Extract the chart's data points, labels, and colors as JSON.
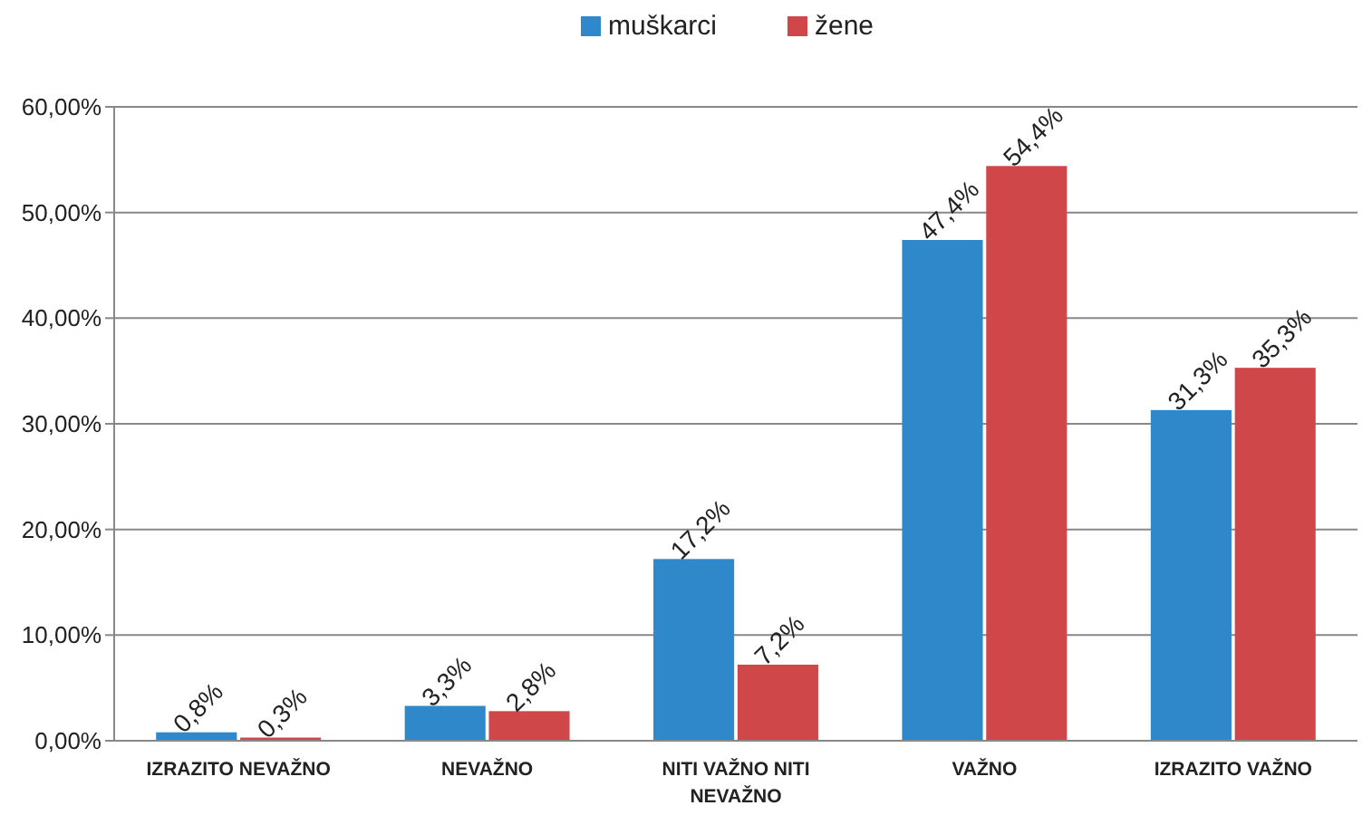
{
  "chart_data": {
    "type": "bar",
    "categories": [
      "IZRAZITO NEVAŽNO",
      "NEVAŽNO",
      "NITI VAŽNO NITI NEVAŽNO",
      "VAŽNO",
      "IZRAZITO VAŽNO"
    ],
    "series": [
      {
        "name": "muškarci",
        "color": "#2e88c9",
        "values": [
          0.8,
          3.3,
          17.2,
          47.4,
          31.3
        ],
        "value_labels": [
          "0,8%",
          "3,3%",
          "17,2%",
          "47,4%",
          "31,3%"
        ]
      },
      {
        "name": "žene",
        "color": "#d0474a",
        "values": [
          0.3,
          2.8,
          7.2,
          54.4,
          35.3
        ],
        "value_labels": [
          "0,3%",
          "2,8%",
          "7,2%",
          "54,4%",
          "35,3%"
        ]
      }
    ],
    "ylim": [
      0,
      60
    ],
    "yticks": [
      {
        "value": 0,
        "label": "0,00%"
      },
      {
        "value": 10,
        "label": "10,00%"
      },
      {
        "value": 20,
        "label": "20,00%"
      },
      {
        "value": 30,
        "label": "30,00%"
      },
      {
        "value": 40,
        "label": "40,00%"
      },
      {
        "value": 50,
        "label": "50,00%"
      },
      {
        "value": 60,
        "label": "60,00%"
      }
    ],
    "grid": "y",
    "legend": "top"
  }
}
